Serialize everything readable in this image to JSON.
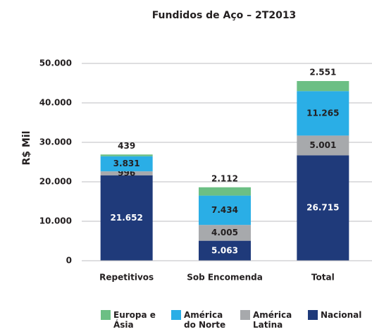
{
  "chart_data": {
    "type": "stacked_bar",
    "title": "Fundidos de Aço – 2T2013",
    "y_label": "R$ Mil",
    "categories": [
      "Repetitivos",
      "Sob Encomenda",
      "Total"
    ],
    "series": [
      {
        "name": "Nacional",
        "color": "#1f3a7a",
        "values": [
          21652,
          5063,
          26715
        ],
        "value_labels": [
          "21.652",
          "5.063",
          "26.715"
        ]
      },
      {
        "name": "América Latina",
        "color": "#a7a9ac",
        "values": [
          996,
          4005,
          5001
        ],
        "value_labels": [
          "996",
          "4.005",
          "5.001"
        ]
      },
      {
        "name": "América do Norte",
        "color": "#2aaee6",
        "values": [
          3831,
          7434,
          11265
        ],
        "value_labels": [
          "3.831",
          "7.434",
          "11.265"
        ]
      },
      {
        "name": "Europa e Ásia",
        "color": "#6cbf84",
        "values": [
          439,
          2112,
          2551
        ],
        "value_labels": [
          "439",
          "2.112",
          "2.551"
        ]
      }
    ],
    "ylim": [
      0,
      50000
    ],
    "yticks": [
      0,
      {
        "value": 10000,
        "label": "10.000"
      },
      {
        "value": 20000,
        "label": "20.000"
      },
      {
        "value": 30000,
        "label": "30.000"
      },
      {
        "value": 40000,
        "label": "40.000"
      },
      {
        "value": 50000,
        "label": "50.000"
      }
    ],
    "grid": true,
    "legend": "bottom"
  }
}
